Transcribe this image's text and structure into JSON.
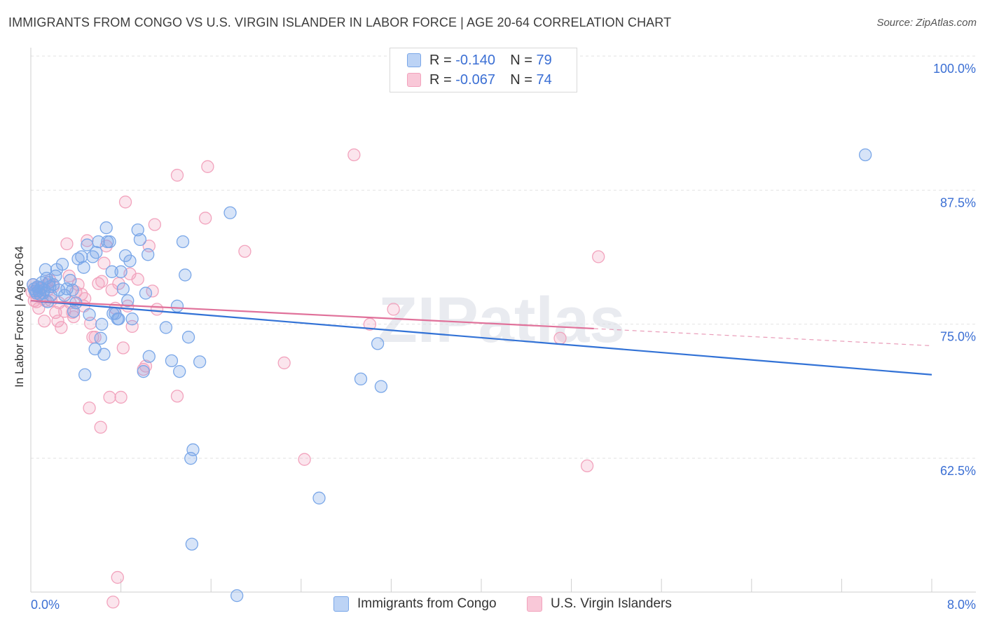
{
  "title": "IMMIGRANTS FROM CONGO VS U.S. VIRGIN ISLANDER IN LABOR FORCE | AGE 20-64 CORRELATION CHART",
  "source": "Source: ZipAtlas.com",
  "legend": {
    "row1": {
      "r_label": "R =",
      "r_value": "-0.140",
      "n_label": "N =",
      "n_value": "79"
    },
    "row2": {
      "r_label": "R =",
      "r_value": "-0.067",
      "n_label": "N =",
      "n_value": "74"
    }
  },
  "bottom_legend": {
    "series1": "Immigrants from Congo",
    "series2": "U.S. Virgin Islanders"
  },
  "watermark": "ZIPatlas",
  "chart_data": {
    "type": "scatter",
    "title": "IMMIGRANTS FROM CONGO VS U.S. VIRGIN ISLANDER IN LABOR FORCE | AGE 20-64 CORRELATION CHART",
    "xlabel": "",
    "ylabel": "In Labor Force | Age 20-64",
    "xlim": [
      0,
      8.0
    ],
    "ylim": [
      50.5,
      102
    ],
    "x_tick_labels": [
      "0.0%",
      "8.0%"
    ],
    "y_ticks": [
      100.0,
      87.5,
      75.0,
      62.5
    ],
    "y_tick_labels": [
      "100.0%",
      "87.5%",
      "75.0%",
      "62.5%"
    ],
    "grid": true,
    "colors": {
      "series1": "#7aa7e8",
      "series1_line": "#3272d6",
      "series2": "#f2a3bd",
      "series2_line": "#e0719a",
      "tick_label": "#3b6fd4"
    },
    "series": [
      {
        "name": "Immigrants from Congo",
        "trend": {
          "x": [
            0,
            8.0
          ],
          "y": [
            78.3,
            71.4
          ]
        },
        "points": [
          [
            0.02,
            79.8
          ],
          [
            0.03,
            79.4
          ],
          [
            0.05,
            79.0
          ],
          [
            0.06,
            79.6
          ],
          [
            0.07,
            79.2
          ],
          [
            0.08,
            78.9
          ],
          [
            0.09,
            79.5
          ],
          [
            0.1,
            80.0
          ],
          [
            0.12,
            79.3
          ],
          [
            0.13,
            81.2
          ],
          [
            0.14,
            80.4
          ],
          [
            0.15,
            78.2
          ],
          [
            0.17,
            79.6
          ],
          [
            0.18,
            78.8
          ],
          [
            0.2,
            79.8
          ],
          [
            0.22,
            80.6
          ],
          [
            0.23,
            81.2
          ],
          [
            0.25,
            79.3
          ],
          [
            0.28,
            81.7
          ],
          [
            0.3,
            78.8
          ],
          [
            0.32,
            79.4
          ],
          [
            0.35,
            80.2
          ],
          [
            0.37,
            79.3
          ],
          [
            0.38,
            77.3
          ],
          [
            0.4,
            78.1
          ],
          [
            0.42,
            82.2
          ],
          [
            0.45,
            82.4
          ],
          [
            0.47,
            81.4
          ],
          [
            0.48,
            71.4
          ],
          [
            0.5,
            83.5
          ],
          [
            0.52,
            77.0
          ],
          [
            0.55,
            82.4
          ],
          [
            0.57,
            73.8
          ],
          [
            0.58,
            82.8
          ],
          [
            0.6,
            83.8
          ],
          [
            0.62,
            74.8
          ],
          [
            0.63,
            76.1
          ],
          [
            0.65,
            73.3
          ],
          [
            0.67,
            85.1
          ],
          [
            0.68,
            83.8
          ],
          [
            0.7,
            83.8
          ],
          [
            0.72,
            81.0
          ],
          [
            0.73,
            77.1
          ],
          [
            0.75,
            77.1
          ],
          [
            0.77,
            76.6
          ],
          [
            0.78,
            76.6
          ],
          [
            0.8,
            81.0
          ],
          [
            0.82,
            79.4
          ],
          [
            0.84,
            82.5
          ],
          [
            0.86,
            78.3
          ],
          [
            0.88,
            82.0
          ],
          [
            0.9,
            76.6
          ],
          [
            0.95,
            84.9
          ],
          [
            0.97,
            84.0
          ],
          [
            1.0,
            71.7
          ],
          [
            1.02,
            79.0
          ],
          [
            1.04,
            82.6
          ],
          [
            1.05,
            73.1
          ],
          [
            1.2,
            75.8
          ],
          [
            1.25,
            72.7
          ],
          [
            1.3,
            77.8
          ],
          [
            1.32,
            71.7
          ],
          [
            1.35,
            83.8
          ],
          [
            1.37,
            80.7
          ],
          [
            1.4,
            74.9
          ],
          [
            1.42,
            63.6
          ],
          [
            1.44,
            64.4
          ],
          [
            1.5,
            72.6
          ],
          [
            1.43,
            55.6
          ],
          [
            1.77,
            86.5
          ],
          [
            1.83,
            50.8
          ],
          [
            2.56,
            59.9
          ],
          [
            2.93,
            71.0
          ],
          [
            3.08,
            74.3
          ],
          [
            3.11,
            70.3
          ],
          [
            7.41,
            91.9
          ],
          [
            0.04,
            79.2
          ],
          [
            0.11,
            79.0
          ],
          [
            0.16,
            80.0
          ]
        ]
      },
      {
        "name": "U.S. Virgin Islanders",
        "trend": {
          "x": [
            0,
            5.0
          ],
          "y": [
            78.3,
            75.7
          ]
        },
        "trend_dashed": {
          "x": [
            5.0,
            8.0
          ],
          "y": [
            75.7,
            74.1
          ]
        },
        "points": [
          [
            0.02,
            79.8
          ],
          [
            0.03,
            78.3
          ],
          [
            0.04,
            79.0
          ],
          [
            0.05,
            78.2
          ],
          [
            0.06,
            79.5
          ],
          [
            0.07,
            77.6
          ],
          [
            0.08,
            78.9
          ],
          [
            0.09,
            79.5
          ],
          [
            0.1,
            78.5
          ],
          [
            0.12,
            76.4
          ],
          [
            0.13,
            78.3
          ],
          [
            0.14,
            79.8
          ],
          [
            0.15,
            79.3
          ],
          [
            0.17,
            80.2
          ],
          [
            0.18,
            78.3
          ],
          [
            0.2,
            79.6
          ],
          [
            0.22,
            77.2
          ],
          [
            0.24,
            76.4
          ],
          [
            0.25,
            78.1
          ],
          [
            0.27,
            75.8
          ],
          [
            0.3,
            77.3
          ],
          [
            0.32,
            83.6
          ],
          [
            0.34,
            80.6
          ],
          [
            0.35,
            78.1
          ],
          [
            0.37,
            77.2
          ],
          [
            0.38,
            76.8
          ],
          [
            0.4,
            79.1
          ],
          [
            0.42,
            79.8
          ],
          [
            0.45,
            78.9
          ],
          [
            0.47,
            77.8
          ],
          [
            0.48,
            78.5
          ],
          [
            0.5,
            83.9
          ],
          [
            0.52,
            68.3
          ],
          [
            0.53,
            76.2
          ],
          [
            0.55,
            74.9
          ],
          [
            0.57,
            74.9
          ],
          [
            0.6,
            79.9
          ],
          [
            0.62,
            66.5
          ],
          [
            0.63,
            80.1
          ],
          [
            0.65,
            81.8
          ],
          [
            0.67,
            83.4
          ],
          [
            0.7,
            69.3
          ],
          [
            0.72,
            79.3
          ],
          [
            0.73,
            50.2
          ],
          [
            0.75,
            77.6
          ],
          [
            0.77,
            52.5
          ],
          [
            0.78,
            79.9
          ],
          [
            0.8,
            69.3
          ],
          [
            0.82,
            73.9
          ],
          [
            0.84,
            87.5
          ],
          [
            0.86,
            77.8
          ],
          [
            0.88,
            80.8
          ],
          [
            0.9,
            75.9
          ],
          [
            0.95,
            80.3
          ],
          [
            1.0,
            71.9
          ],
          [
            1.02,
            72.2
          ],
          [
            1.05,
            83.4
          ],
          [
            1.08,
            79.2
          ],
          [
            1.1,
            85.4
          ],
          [
            1.12,
            77.5
          ],
          [
            1.3,
            90.0
          ],
          [
            1.3,
            69.4
          ],
          [
            1.55,
            86.0
          ],
          [
            1.57,
            90.8
          ],
          [
            1.9,
            82.9
          ],
          [
            2.25,
            72.5
          ],
          [
            2.43,
            63.5
          ],
          [
            2.87,
            91.9
          ],
          [
            3.01,
            76.1
          ],
          [
            3.22,
            77.5
          ],
          [
            4.7,
            74.8
          ],
          [
            4.94,
            62.9
          ],
          [
            5.04,
            82.4
          ],
          [
            0.01,
            79.1
          ]
        ]
      }
    ]
  }
}
